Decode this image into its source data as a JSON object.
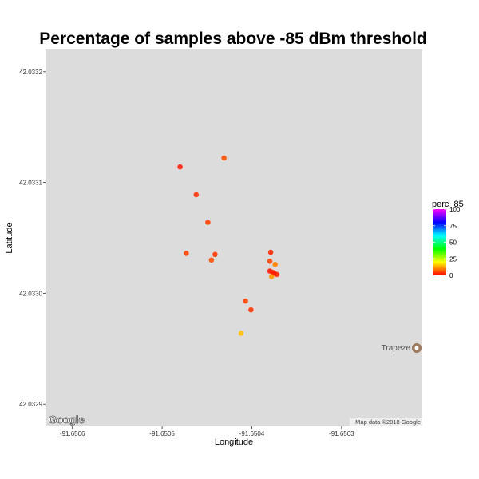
{
  "chart_data": {
    "type": "scatter",
    "title": "Percentage of samples above -85 dBm threshold",
    "xlabel": "Longitude",
    "ylabel": "Latitude",
    "xlim": [
      -91.65063,
      -91.65021
    ],
    "ylim": [
      42.03288,
      42.03322
    ],
    "x_ticks": [
      -91.6506,
      -91.6505,
      -91.6504,
      -91.6503
    ],
    "x_tick_labels": [
      "-91.6506",
      "-91.6505",
      "-91.6504",
      "-91.6503"
    ],
    "y_ticks": [
      42.0329,
      42.033,
      42.0331,
      42.0332
    ],
    "y_tick_labels": [
      "42.0329",
      "42.0330",
      "42.0331",
      "42.0332"
    ],
    "legend": {
      "title": "perc_85",
      "placement": "right",
      "ticks": [
        0,
        25,
        50,
        75,
        100
      ],
      "tick_labels": [
        "0",
        "25",
        "50",
        "75",
        "100"
      ],
      "colors": [
        "#ff0000",
        "#ffff00",
        "#00ff00",
        "#00ffff",
        "#0000ff",
        "#ff00ff"
      ]
    },
    "points": [
      {
        "x": -91.65048,
        "y": 42.033114,
        "perc_85": 2
      },
      {
        "x": -91.650431,
        "y": 42.033122,
        "perc_85": 6
      },
      {
        "x": -91.650462,
        "y": 42.033089,
        "perc_85": 4
      },
      {
        "x": -91.650449,
        "y": 42.033064,
        "perc_85": 5
      },
      {
        "x": -91.650473,
        "y": 42.033036,
        "perc_85": 5
      },
      {
        "x": -91.650441,
        "y": 42.033035,
        "perc_85": 4
      },
      {
        "x": -91.650445,
        "y": 42.03303,
        "perc_85": 6
      },
      {
        "x": -91.650379,
        "y": 42.033037,
        "perc_85": 3
      },
      {
        "x": -91.65038,
        "y": 42.033029,
        "perc_85": 5
      },
      {
        "x": -91.650374,
        "y": 42.033026,
        "perc_85": 10
      },
      {
        "x": -91.65038,
        "y": 42.03302,
        "perc_85": 2
      },
      {
        "x": -91.650377,
        "y": 42.033019,
        "perc_85": 3
      },
      {
        "x": -91.650375,
        "y": 42.033018,
        "perc_85": 2
      },
      {
        "x": -91.650372,
        "y": 42.033017,
        "perc_85": 3
      },
      {
        "x": -91.650378,
        "y": 42.033015,
        "perc_85": 12
      },
      {
        "x": -91.650407,
        "y": 42.032993,
        "perc_85": 5
      },
      {
        "x": -91.650401,
        "y": 42.032985,
        "perc_85": 4
      },
      {
        "x": -91.650412,
        "y": 42.032964,
        "perc_85": 15
      }
    ]
  },
  "map": {
    "place_label": "Trapeze",
    "attribution": "Map data ©2018 Google",
    "logo": "Google",
    "background_color": "#dcdcdc"
  }
}
